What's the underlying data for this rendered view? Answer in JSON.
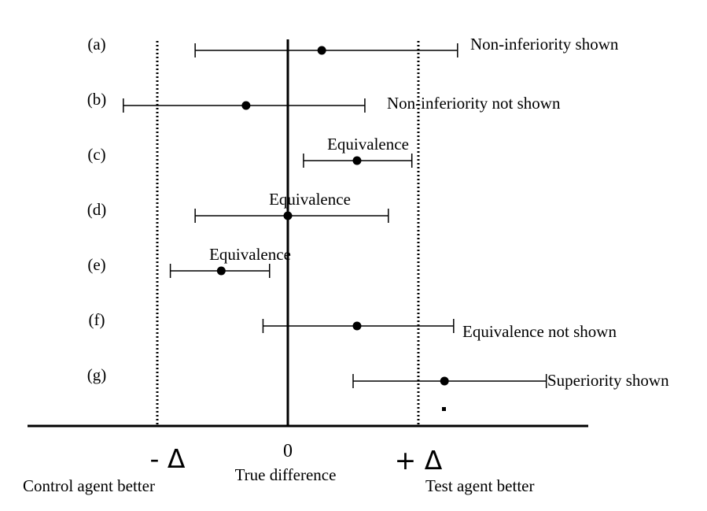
{
  "rows": [
    {
      "label": "(a)",
      "low": -0.71,
      "point": 0.26,
      "high": 1.3,
      "annotation": "Non-inferiority shown"
    },
    {
      "label": "(b)",
      "low": -1.26,
      "point": -0.32,
      "high": 0.59,
      "annotation": "Non-inferiority not shown"
    },
    {
      "label": "(c)",
      "low": 0.12,
      "point": 0.53,
      "high": 0.95,
      "annotation": "Equivalence"
    },
    {
      "label": "(d)",
      "low": -0.71,
      "point": 0.0,
      "high": 0.77,
      "annotation": "Equivalence"
    },
    {
      "label": "(e)",
      "low": -0.9,
      "point": -0.51,
      "high": -0.14,
      "annotation": "Equivalence"
    },
    {
      "label": "(f)",
      "low": -0.19,
      "point": 0.53,
      "high": 1.27,
      "annotation": "Equivalence not shown"
    },
    {
      "label": "(g)",
      "low": 0.5,
      "point": 1.2,
      "high": 1.98,
      "annotation": "Superiority shown"
    }
  ],
  "axis": {
    "zero_label": "0",
    "zero_caption": "True difference",
    "minus_delta_label": "- Δ",
    "plus_delta_label": "+ Δ",
    "left_caption": "Control agent better",
    "right_caption": "Test agent better"
  },
  "margins": {
    "minus_delta": -1.0,
    "plus_delta": 1.0
  }
}
